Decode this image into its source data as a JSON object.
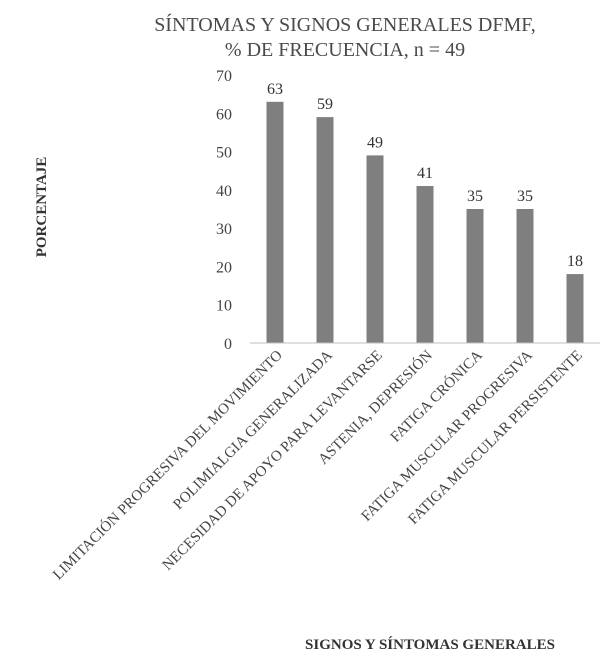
{
  "chart_data": {
    "type": "bar",
    "title_lines": [
      "SÍNTOMAS Y SIGNOS GENERALES DFMF,",
      "% DE FRECUENCIA, n = 49"
    ],
    "xlabel": "SIGNOS Y SÍNTOMAS GENERALES",
    "ylabel": "PORCENTAJE",
    "ylim": [
      0,
      70
    ],
    "yticks": [
      0,
      10,
      20,
      30,
      40,
      50,
      60,
      70
    ],
    "grid": false,
    "legend": "none",
    "categories": [
      "LIMITACIÓN  PROGRESIVA DEL MOVIMIENTO",
      "POLIMIALGIA GENERALIZADA",
      "NECESIDAD DE APOYO PARA LEVANTARSE",
      "ASTENIA, DEPRESIÓN",
      "FATIGA CRÓNICA",
      "FATIGA MUSCULAR PROGRESIVA",
      "FATIGA MUSCULAR PERSISTENTE"
    ],
    "values": [
      63,
      59,
      49,
      41,
      35,
      35,
      18
    ],
    "data_labels": [
      "63",
      "59",
      "49",
      "41",
      "35",
      "35",
      "18"
    ],
    "bar_color": "#7f7f80",
    "axis_color": "#bfbfbf"
  }
}
